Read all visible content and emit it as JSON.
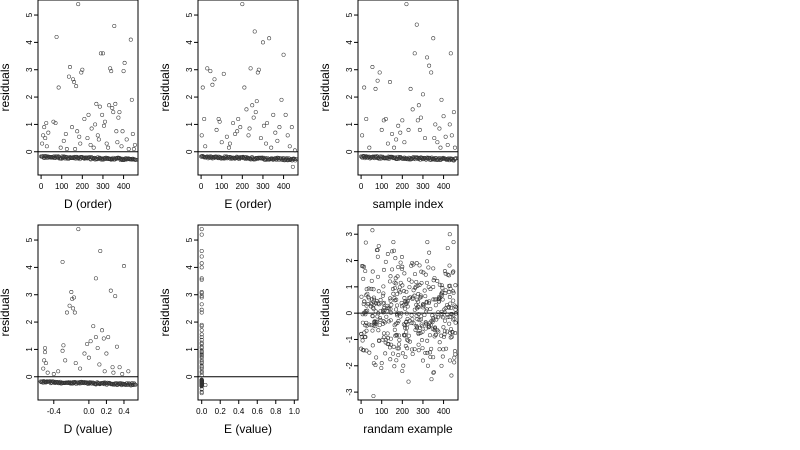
{
  "chart_data": [
    {
      "type": "scatter",
      "xlabel": "D (order)",
      "ylabel": "residuals",
      "xlim": [
        -15,
        470
      ],
      "ylim": [
        -0.85,
        5.55
      ],
      "xticks": [
        0,
        100,
        200,
        300,
        400
      ],
      "xtick_labels": [
        "0",
        "100",
        "200",
        "300",
        "400"
      ],
      "yticks": [
        0,
        1,
        2,
        3,
        4,
        5
      ],
      "ytick_labels": [
        "0",
        "1",
        "2",
        "3",
        "4",
        "5"
      ],
      "hline": 0,
      "grid": false,
      "points": [
        [
          5,
          0.3
        ],
        [
          10,
          0.6
        ],
        [
          15,
          0.9
        ],
        [
          20,
          0.5
        ],
        [
          25,
          1.05
        ],
        [
          28,
          0.2
        ],
        [
          35,
          0.7
        ],
        [
          60,
          1.1
        ],
        [
          70,
          1.05
        ],
        [
          75,
          4.2
        ],
        [
          85,
          2.35
        ],
        [
          95,
          0.15
        ],
        [
          110,
          0.4
        ],
        [
          120,
          0.65
        ],
        [
          125,
          0.1
        ],
        [
          135,
          2.75
        ],
        [
          140,
          3.1
        ],
        [
          150,
          0.9
        ],
        [
          155,
          2.65
        ],
        [
          160,
          2.55
        ],
        [
          165,
          0.1
        ],
        [
          170,
          2.4
        ],
        [
          175,
          0.75
        ],
        [
          180,
          5.4
        ],
        [
          185,
          0.55
        ],
        [
          190,
          0.3
        ],
        [
          195,
          2.9
        ],
        [
          200,
          3.0
        ],
        [
          210,
          1.2
        ],
        [
          225,
          0.5
        ],
        [
          230,
          1.35
        ],
        [
          240,
          0.25
        ],
        [
          245,
          0.85
        ],
        [
          255,
          0.15
        ],
        [
          262,
          1.0
        ],
        [
          268,
          1.75
        ],
        [
          275,
          0.6
        ],
        [
          280,
          0.45
        ],
        [
          285,
          1.65
        ],
        [
          290,
          3.6
        ],
        [
          296,
          1.35
        ],
        [
          300,
          3.6
        ],
        [
          305,
          0.95
        ],
        [
          310,
          1.1
        ],
        [
          318,
          0.3
        ],
        [
          325,
          0.15
        ],
        [
          330,
          1.7
        ],
        [
          335,
          3.05
        ],
        [
          340,
          2.95
        ],
        [
          345,
          1.6
        ],
        [
          350,
          1.45
        ],
        [
          355,
          4.6
        ],
        [
          360,
          1.75
        ],
        [
          365,
          0.75
        ],
        [
          370,
          0.35
        ],
        [
          375,
          1.25
        ],
        [
          380,
          1.45
        ],
        [
          390,
          0.2
        ],
        [
          395,
          0.75
        ],
        [
          400,
          2.95
        ],
        [
          405,
          3.25
        ],
        [
          415,
          0.45
        ],
        [
          425,
          0.1
        ],
        [
          435,
          4.1
        ],
        [
          440,
          1.9
        ],
        [
          445,
          0.65
        ],
        [
          450,
          0.1
        ],
        [
          455,
          0.25
        ]
      ],
      "band": {
        "x_start": 0,
        "x_end": 460,
        "y_start": -0.15,
        "y_end": -0.32,
        "count": 150
      }
    },
    {
      "type": "scatter",
      "xlabel": "E (order)",
      "ylabel": "residuals",
      "xlim": [
        -15,
        470
      ],
      "ylim": [
        -0.85,
        5.55
      ],
      "xticks": [
        0,
        100,
        200,
        300,
        400
      ],
      "xtick_labels": [
        "0",
        "100",
        "200",
        "300",
        "400"
      ],
      "yticks": [
        0,
        1,
        2,
        3,
        4,
        5
      ],
      "ytick_labels": [
        "0",
        "1",
        "2",
        "3",
        "4",
        "5"
      ],
      "hline": 0,
      "grid": false,
      "points": [
        [
          3,
          0.6
        ],
        [
          8,
          2.35
        ],
        [
          15,
          1.2
        ],
        [
          20,
          0.2
        ],
        [
          30,
          3.05
        ],
        [
          45,
          2.95
        ],
        [
          55,
          2.45
        ],
        [
          65,
          2.65
        ],
        [
          75,
          0.8
        ],
        [
          85,
          1.2
        ],
        [
          90,
          1.1
        ],
        [
          100,
          0.35
        ],
        [
          110,
          2.85
        ],
        [
          125,
          0.55
        ],
        [
          135,
          0.15
        ],
        [
          140,
          0.3
        ],
        [
          155,
          1.05
        ],
        [
          165,
          0.65
        ],
        [
          175,
          0.75
        ],
        [
          180,
          1.2
        ],
        [
          190,
          0.9
        ],
        [
          200,
          5.4
        ],
        [
          210,
          2.35
        ],
        [
          220,
          1.55
        ],
        [
          230,
          0.6
        ],
        [
          235,
          0.85
        ],
        [
          240,
          3.05
        ],
        [
          248,
          1.7
        ],
        [
          255,
          1.25
        ],
        [
          260,
          4.4
        ],
        [
          265,
          1.45
        ],
        [
          270,
          1.85
        ],
        [
          275,
          2.9
        ],
        [
          280,
          3.0
        ],
        [
          290,
          0.5
        ],
        [
          300,
          4.0
        ],
        [
          305,
          0.95
        ],
        [
          315,
          0.3
        ],
        [
          320,
          1.05
        ],
        [
          330,
          4.15
        ],
        [
          340,
          0.15
        ],
        [
          350,
          1.35
        ],
        [
          360,
          0.7
        ],
        [
          370,
          0.4
        ],
        [
          380,
          0.9
        ],
        [
          390,
          1.9
        ],
        [
          400,
          3.55
        ],
        [
          410,
          1.35
        ],
        [
          420,
          0.6
        ],
        [
          430,
          0.2
        ],
        [
          440,
          0.9
        ],
        [
          445,
          -0.55
        ],
        [
          455,
          0.05
        ]
      ],
      "band": {
        "x_start": 0,
        "x_end": 460,
        "y_start": -0.15,
        "y_end": -0.32,
        "count": 150
      }
    },
    {
      "type": "scatter",
      "xlabel": "sample index",
      "ylabel": "residuals",
      "xlim": [
        -15,
        470
      ],
      "ylim": [
        -0.85,
        5.55
      ],
      "xticks": [
        0,
        100,
        200,
        300,
        400
      ],
      "xtick_labels": [
        "0",
        "100",
        "200",
        "300",
        "400"
      ],
      "yticks": [
        0,
        1,
        2,
        3,
        4,
        5
      ],
      "ytick_labels": [
        "0",
        "1",
        "2",
        "3",
        "4",
        "5"
      ],
      "hline": 0,
      "grid": false,
      "points": [
        [
          5,
          0.6
        ],
        [
          15,
          2.35
        ],
        [
          25,
          1.2
        ],
        [
          40,
          0.15
        ],
        [
          55,
          3.1
        ],
        [
          70,
          2.3
        ],
        [
          80,
          2.6
        ],
        [
          90,
          2.9
        ],
        [
          100,
          0.8
        ],
        [
          110,
          1.15
        ],
        [
          120,
          1.2
        ],
        [
          130,
          0.3
        ],
        [
          140,
          2.55
        ],
        [
          150,
          0.65
        ],
        [
          160,
          0.15
        ],
        [
          170,
          0.45
        ],
        [
          180,
          0.95
        ],
        [
          190,
          0.7
        ],
        [
          200,
          1.15
        ],
        [
          210,
          0.35
        ],
        [
          220,
          5.4
        ],
        [
          230,
          0.8
        ],
        [
          240,
          2.3
        ],
        [
          250,
          1.55
        ],
        [
          260,
          3.6
        ],
        [
          270,
          4.65
        ],
        [
          275,
          1.15
        ],
        [
          280,
          1.7
        ],
        [
          285,
          0.8
        ],
        [
          290,
          1.25
        ],
        [
          300,
          2.1
        ],
        [
          310,
          0.5
        ],
        [
          320,
          3.45
        ],
        [
          330,
          3.15
        ],
        [
          340,
          2.9
        ],
        [
          350,
          4.15
        ],
        [
          355,
          0.5
        ],
        [
          360,
          1.0
        ],
        [
          370,
          0.35
        ],
        [
          380,
          0.85
        ],
        [
          385,
          0.15
        ],
        [
          390,
          1.9
        ],
        [
          400,
          1.3
        ],
        [
          410,
          0.55
        ],
        [
          420,
          0.25
        ],
        [
          430,
          1.0
        ],
        [
          435,
          3.6
        ],
        [
          440,
          0.6
        ],
        [
          450,
          1.45
        ],
        [
          455,
          0.15
        ]
      ],
      "band": {
        "x_start": 0,
        "x_end": 460,
        "y_start": -0.15,
        "y_end": -0.32,
        "count": 150
      }
    },
    {
      "type": "scatter",
      "xlabel": "D (value)",
      "ylabel": "residuals",
      "xlim": [
        -0.58,
        0.56
      ],
      "ylim": [
        -0.85,
        5.55
      ],
      "xticks": [
        -0.4,
        0.0,
        0.2,
        0.4
      ],
      "xtick_labels": [
        "-0.4",
        "0.0",
        "0.2",
        "0.4"
      ],
      "yticks": [
        0,
        1,
        2,
        3,
        4,
        5
      ],
      "ytick_labels": [
        "0",
        "1",
        "2",
        "3",
        "4",
        "5"
      ],
      "hline": 0,
      "grid": false,
      "points": [
        [
          -0.52,
          0.3
        ],
        [
          -0.51,
          0.6
        ],
        [
          -0.5,
          0.9
        ],
        [
          -0.5,
          1.05
        ],
        [
          -0.49,
          0.5
        ],
        [
          -0.47,
          0.15
        ],
        [
          -0.4,
          0.1
        ],
        [
          -0.35,
          0.2
        ],
        [
          -0.3,
          4.2
        ],
        [
          -0.3,
          0.95
        ],
        [
          -0.29,
          1.15
        ],
        [
          -0.27,
          0.6
        ],
        [
          -0.25,
          2.35
        ],
        [
          -0.22,
          2.6
        ],
        [
          -0.2,
          3.1
        ],
        [
          -0.19,
          2.85
        ],
        [
          -0.18,
          2.5
        ],
        [
          -0.17,
          2.9
        ],
        [
          -0.16,
          2.35
        ],
        [
          -0.15,
          0.5
        ],
        [
          -0.12,
          5.4
        ],
        [
          -0.1,
          0.3
        ],
        [
          -0.05,
          0.85
        ],
        [
          -0.02,
          1.2
        ],
        [
          0.0,
          0.7
        ],
        [
          0.02,
          1.3
        ],
        [
          0.05,
          1.85
        ],
        [
          0.08,
          3.6
        ],
        [
          0.08,
          1.45
        ],
        [
          0.1,
          1.05
        ],
        [
          0.12,
          0.45
        ],
        [
          0.13,
          4.6
        ],
        [
          0.15,
          1.7
        ],
        [
          0.17,
          1.4
        ],
        [
          0.18,
          0.2
        ],
        [
          0.2,
          0.85
        ],
        [
          0.22,
          1.45
        ],
        [
          0.25,
          3.15
        ],
        [
          0.27,
          0.35
        ],
        [
          0.28,
          0.15
        ],
        [
          0.3,
          2.95
        ],
        [
          0.32,
          1.1
        ],
        [
          0.35,
          0.35
        ],
        [
          0.38,
          0.1
        ],
        [
          0.4,
          4.05
        ],
        [
          0.45,
          0.2
        ]
      ],
      "band": {
        "x_start": -0.55,
        "x_end": 0.53,
        "y_start": -0.15,
        "y_end": -0.32,
        "count": 150
      }
    },
    {
      "type": "scatter",
      "xlabel": "E (value)",
      "ylabel": "residuals",
      "xlim": [
        -0.04,
        1.04
      ],
      "ylim": [
        -0.85,
        5.55
      ],
      "xticks": [
        0.0,
        0.2,
        0.4,
        0.6,
        0.8,
        1.0
      ],
      "xtick_labels": [
        "0.0",
        "0.2",
        "0.4",
        "0.6",
        "0.8",
        "1.0"
      ],
      "yticks": [
        0,
        1,
        2,
        3,
        4,
        5
      ],
      "ytick_labels": [
        "0",
        "1",
        "2",
        "3",
        "4",
        "5"
      ],
      "hline": 0,
      "grid": false,
      "points": [
        [
          0.0,
          5.4
        ],
        [
          0.0,
          5.2
        ],
        [
          0.0,
          4.6
        ],
        [
          0.0,
          4.4
        ],
        [
          0.0,
          4.15
        ],
        [
          0.0,
          4.0
        ],
        [
          0.0,
          3.6
        ],
        [
          0.0,
          3.55
        ],
        [
          0.0,
          3.1
        ],
        [
          0.0,
          3.05
        ],
        [
          0.0,
          2.95
        ],
        [
          0.0,
          2.9
        ],
        [
          0.0,
          2.65
        ],
        [
          0.0,
          2.45
        ],
        [
          0.0,
          2.35
        ],
        [
          0.0,
          1.9
        ],
        [
          0.0,
          1.85
        ],
        [
          0.0,
          1.7
        ],
        [
          0.0,
          1.55
        ],
        [
          0.0,
          1.45
        ],
        [
          0.0,
          1.35
        ],
        [
          0.0,
          1.25
        ],
        [
          0.0,
          1.2
        ],
        [
          0.0,
          1.1
        ],
        [
          0.0,
          1.05
        ],
        [
          0.0,
          0.95
        ],
        [
          0.0,
          0.9
        ],
        [
          0.0,
          0.85
        ],
        [
          0.0,
          0.8
        ],
        [
          0.0,
          0.75
        ],
        [
          0.0,
          0.7
        ],
        [
          0.0,
          0.6
        ],
        [
          0.0,
          0.55
        ],
        [
          0.0,
          0.5
        ],
        [
          0.0,
          0.4
        ],
        [
          0.0,
          0.35
        ],
        [
          0.0,
          0.3
        ],
        [
          0.0,
          0.2
        ],
        [
          0.0,
          0.15
        ],
        [
          0.0,
          0.05
        ],
        [
          0.0,
          -0.55
        ],
        [
          0.0,
          -0.6
        ],
        [
          0.0,
          -0.35
        ],
        [
          0.0,
          -0.45
        ],
        [
          0.04,
          -0.3
        ]
      ],
      "band": {
        "x_start": 0.0,
        "x_end": 0.0,
        "y_start": -0.1,
        "y_end": -0.35,
        "count": 150
      }
    },
    {
      "type": "scatter",
      "xlabel": "randam example",
      "ylabel": "residuals",
      "xlim": [
        -15,
        470
      ],
      "ylim": [
        -3.3,
        3.35
      ],
      "xticks": [
        0,
        100,
        200,
        300,
        400
      ],
      "xtick_labels": [
        "0",
        "100",
        "200",
        "300",
        "400"
      ],
      "yticks": [
        -3,
        -2,
        -1,
        0,
        1,
        2,
        3
      ],
      "ytick_labels": [
        "-3",
        "-2",
        "-1",
        "0",
        "1",
        "2",
        "3"
      ],
      "hline": 0,
      "grid": false,
      "points": [
        [
          55,
          3.15
        ],
        [
          430,
          3.0
        ],
        [
          60,
          -3.15
        ],
        [
          230,
          -2.6
        ],
        [
          80,
          2.4
        ],
        [
          150,
          2.35
        ],
        [
          330,
          2.3
        ],
        [
          200,
          -2.2
        ],
        [
          390,
          -2.0
        ],
        [
          120,
          1.95
        ],
        [
          270,
          1.9
        ],
        [
          20,
          1.6
        ],
        [
          100,
          -1.9
        ],
        [
          300,
          -1.8
        ],
        [
          180,
          1.75
        ],
        [
          350,
          1.7
        ],
        [
          40,
          -1.5
        ],
        [
          250,
          -1.55
        ],
        [
          410,
          1.5
        ],
        [
          140,
          -1.3
        ]
      ],
      "random_cloud": {
        "count": 430,
        "x_min": 0,
        "x_max": 460,
        "mean": 0,
        "sd": 0.95,
        "seed": 7
      }
    }
  ]
}
